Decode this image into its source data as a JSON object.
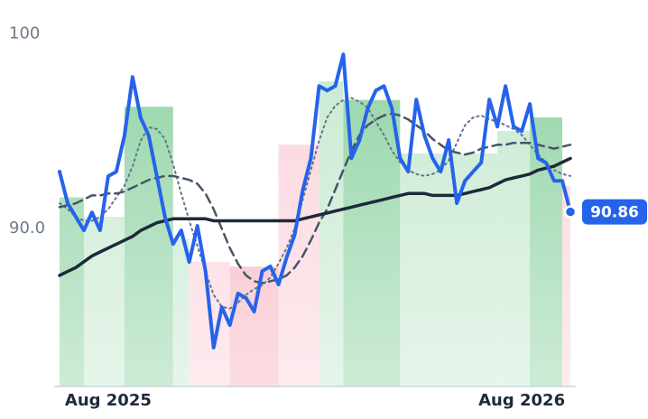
{
  "chart_data": {
    "type": "line",
    "categories": [
      null,
      null,
      null,
      null,
      null,
      null,
      "Aug 2025",
      null,
      null,
      null,
      null,
      null,
      null,
      null,
      null,
      null,
      null,
      null,
      null,
      null,
      null,
      null,
      null,
      null,
      null,
      null,
      null,
      null,
      null,
      null,
      null,
      null,
      null,
      null,
      null,
      null,
      null,
      null,
      null,
      null,
      null,
      null,
      null,
      null,
      null,
      null,
      null,
      null,
      null,
      null,
      null,
      null,
      null,
      null,
      null,
      null,
      null,
      "Aug 2026",
      null,
      null,
      null,
      null,
      null,
      null
    ],
    "ylim": [
      81.9,
      100.8
    ],
    "yticks": [
      {
        "value": 90,
        "label": "90.0"
      },
      100
    ],
    "series": [
      {
        "color": "#2563eb",
        "style": "solid",
        "width": 4,
        "last_label": true,
        "values": [
          92.92,
          91.3,
          90.6,
          89.91,
          90.83,
          89.91,
          92.69,
          92.92,
          94.77,
          97.78,
          95.69,
          94.77,
          92.69,
          90.6,
          89.21,
          89.91,
          88.29,
          90.14,
          87.82,
          83.89,
          85.97,
          85.05,
          86.67,
          86.44,
          85.74,
          87.82,
          88.06,
          87.13,
          88.52,
          89.68,
          91.99,
          93.61,
          97.31,
          97.08,
          97.31,
          98.94,
          93.61,
          94.54,
          96.16,
          97.08,
          97.31,
          96.16,
          93.61,
          92.92,
          96.62,
          94.77,
          93.61,
          92.92,
          94.54,
          91.3,
          92.45,
          92.92,
          93.38,
          96.62,
          95.23,
          97.31,
          95.23,
          95.0,
          96.39,
          93.61,
          93.38,
          92.45,
          92.45,
          90.86
        ]
      },
      {
        "color": "#1e293b",
        "style": "solid",
        "width": 3.5,
        "values": [
          87.6,
          87.8,
          88.0,
          88.3,
          88.6,
          88.8,
          89.0,
          89.2,
          89.4,
          89.6,
          89.9,
          90.1,
          90.3,
          90.4,
          90.5,
          90.5,
          90.5,
          90.5,
          90.5,
          90.4,
          90.4,
          90.4,
          90.4,
          90.4,
          90.4,
          90.4,
          90.4,
          90.4,
          90.4,
          90.4,
          90.5,
          90.6,
          90.7,
          90.8,
          90.9,
          91.0,
          91.1,
          91.2,
          91.3,
          91.4,
          91.5,
          91.6,
          91.7,
          91.8,
          91.8,
          91.8,
          91.7,
          91.7,
          91.7,
          91.7,
          91.8,
          91.9,
          92.0,
          92.1,
          92.3,
          92.5,
          92.6,
          92.7,
          92.8,
          93.0,
          93.1,
          93.2,
          93.4,
          93.6
        ]
      },
      {
        "color": "#475569",
        "style": "dashed",
        "width": 2.5,
        "values": [
          91.1,
          91.2,
          91.3,
          91.5,
          91.7,
          91.7,
          91.8,
          91.8,
          91.9,
          92.1,
          92.3,
          92.5,
          92.6,
          92.7,
          92.7,
          92.6,
          92.5,
          92.3,
          91.8,
          91.0,
          90.0,
          89.0,
          88.2,
          87.6,
          87.3,
          87.2,
          87.3,
          87.4,
          87.6,
          88.0,
          88.6,
          89.4,
          90.3,
          91.0,
          92.0,
          93.0,
          94.0,
          94.8,
          95.3,
          95.6,
          95.8,
          95.9,
          95.8,
          95.6,
          95.3,
          95.0,
          94.6,
          94.3,
          94.0,
          93.9,
          93.8,
          93.9,
          94.1,
          94.2,
          94.3,
          94.3,
          94.4,
          94.4,
          94.4,
          94.3,
          94.2,
          94.1,
          94.2,
          94.3
        ]
      },
      {
        "color": "#64748b",
        "style": "dotted",
        "width": 2,
        "values": [
          91.3,
          91.0,
          90.6,
          90.4,
          90.4,
          90.6,
          91.0,
          91.6,
          92.2,
          93.2,
          94.5,
          95.2,
          95.1,
          94.6,
          93.3,
          91.8,
          90.4,
          89.1,
          87.8,
          86.6,
          86.0,
          85.9,
          86.2,
          86.6,
          86.9,
          87.1,
          87.5,
          88.2,
          89.0,
          90.0,
          91.5,
          93.0,
          94.5,
          95.7,
          96.3,
          96.6,
          96.7,
          96.5,
          96.2,
          95.5,
          94.8,
          94.0,
          93.4,
          93.0,
          92.8,
          92.7,
          92.8,
          93.0,
          93.5,
          94.4,
          95.3,
          95.7,
          95.8,
          95.6,
          95.5,
          95.3,
          95.1,
          94.8,
          94.3,
          93.8,
          93.4,
          93.0,
          92.8,
          92.7
        ]
      }
    ],
    "columns": [
      {
        "start": 0,
        "end": 3,
        "value": 91.6,
        "color": "#8fd3a3"
      },
      {
        "start": 3,
        "end": 8,
        "value": 90.6,
        "color": "#c6e9d0"
      },
      {
        "start": 8,
        "end": 14,
        "value": 96.25,
        "color": "#8fd3a3"
      },
      {
        "start": 14,
        "end": 16,
        "value": 89.45,
        "color": "#c6e9d0"
      },
      {
        "start": 16,
        "end": 21,
        "value": 88.3,
        "color": "#fbd3db"
      },
      {
        "start": 21,
        "end": 27,
        "value": 88.05,
        "color": "#f6b3c0"
      },
      {
        "start": 27,
        "end": 32,
        "value": 94.3,
        "color": "#fbd3db"
      },
      {
        "start": 32,
        "end": 35,
        "value": 97.55,
        "color": "#c6e9d0"
      },
      {
        "start": 35,
        "end": 42,
        "value": 96.6,
        "color": "#8fd3a3"
      },
      {
        "start": 42,
        "end": 54,
        "value": 93.85,
        "color": "#c6e9d0"
      },
      {
        "start": 54,
        "end": 58,
        "value": 95.0,
        "color": "#c6e9d0"
      },
      {
        "start": 58,
        "end": 62,
        "value": 95.7,
        "color": "#8fd3a3"
      },
      {
        "start": 62,
        "end": 63,
        "value": 92.2,
        "color": "#fbd3db"
      }
    ]
  }
}
